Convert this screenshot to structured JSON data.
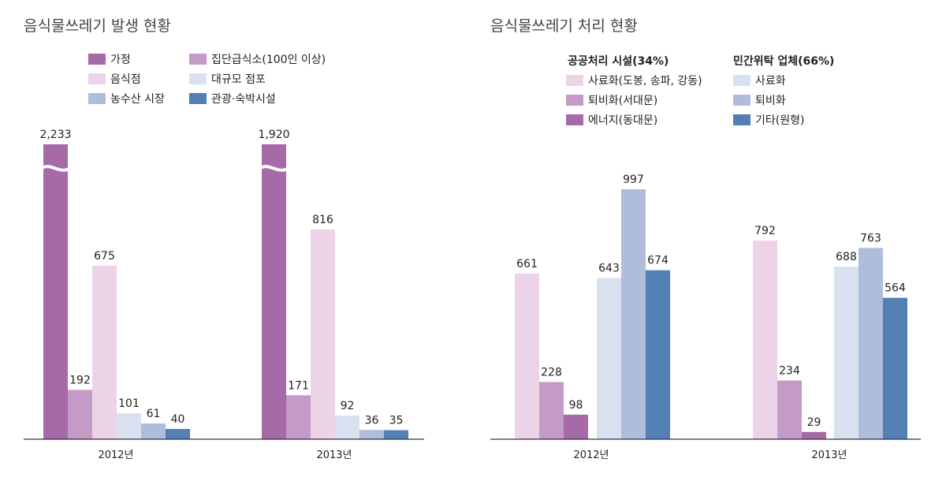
{
  "colors": {
    "text": "#222222",
    "title": "#444444",
    "axis": "#333333",
    "break_line": "#ffffff"
  },
  "chart_data": [
    {
      "type": "bar",
      "title": "음식물쓰레기 발생 현황",
      "categories": [
        "2012년",
        "2013년"
      ],
      "axis_break": true,
      "legend_placement": "top",
      "series": [
        {
          "name": "가정",
          "color": "#a66aa8",
          "values": [
            2233,
            1920
          ],
          "labels": [
            "2,233",
            "1,920"
          ],
          "broken": true
        },
        {
          "name": "집단급식소(100인 이상)",
          "color": "#c49ac6",
          "values": [
            192,
            171
          ],
          "labels": [
            "192",
            "171"
          ]
        },
        {
          "name": "음식점",
          "color": "#ecd3e7",
          "values": [
            675,
            816
          ],
          "labels": [
            "675",
            "816"
          ]
        },
        {
          "name": "대규모 점포",
          "color": "#d9e0ef",
          "values": [
            101,
            92
          ],
          "labels": [
            "101",
            "92"
          ]
        },
        {
          "name": "농수산 시장",
          "color": "#afbcdb",
          "values": [
            61,
            36
          ],
          "labels": [
            "61",
            "36"
          ]
        },
        {
          "name": "관광·숙박시설",
          "color": "#527fb4",
          "values": [
            40,
            35
          ],
          "labels": [
            "40",
            "35"
          ]
        }
      ]
    },
    {
      "type": "bar",
      "title": "음식물쓰레기 처리 현황",
      "categories": [
        "2012년",
        "2013년"
      ],
      "ylim": [
        0,
        1000
      ],
      "legend_placement": "top",
      "legend_groups": [
        {
          "title": "공공처리 시설(34%)",
          "series": [
            0,
            1,
            2
          ]
        },
        {
          "title": "민간위탁 업체(66%)",
          "series": [
            3,
            4,
            5
          ]
        }
      ],
      "series": [
        {
          "name": "사료화(도봉, 송파, 강동)",
          "color": "#ecd3e7",
          "values": [
            661,
            792
          ]
        },
        {
          "name": "퇴비화(서대문)",
          "color": "#c49ac6",
          "values": [
            228,
            234
          ]
        },
        {
          "name": "에너지(동대문)",
          "color": "#a66aa8",
          "values": [
            98,
            29
          ]
        },
        {
          "name": "사료화",
          "color": "#d9e0ef",
          "values": [
            643,
            688
          ]
        },
        {
          "name": "퇴비화",
          "color": "#afbcdb",
          "values": [
            997,
            763
          ]
        },
        {
          "name": "기타(원형)",
          "color": "#527fb4",
          "values": [
            674,
            564
          ]
        }
      ]
    }
  ]
}
